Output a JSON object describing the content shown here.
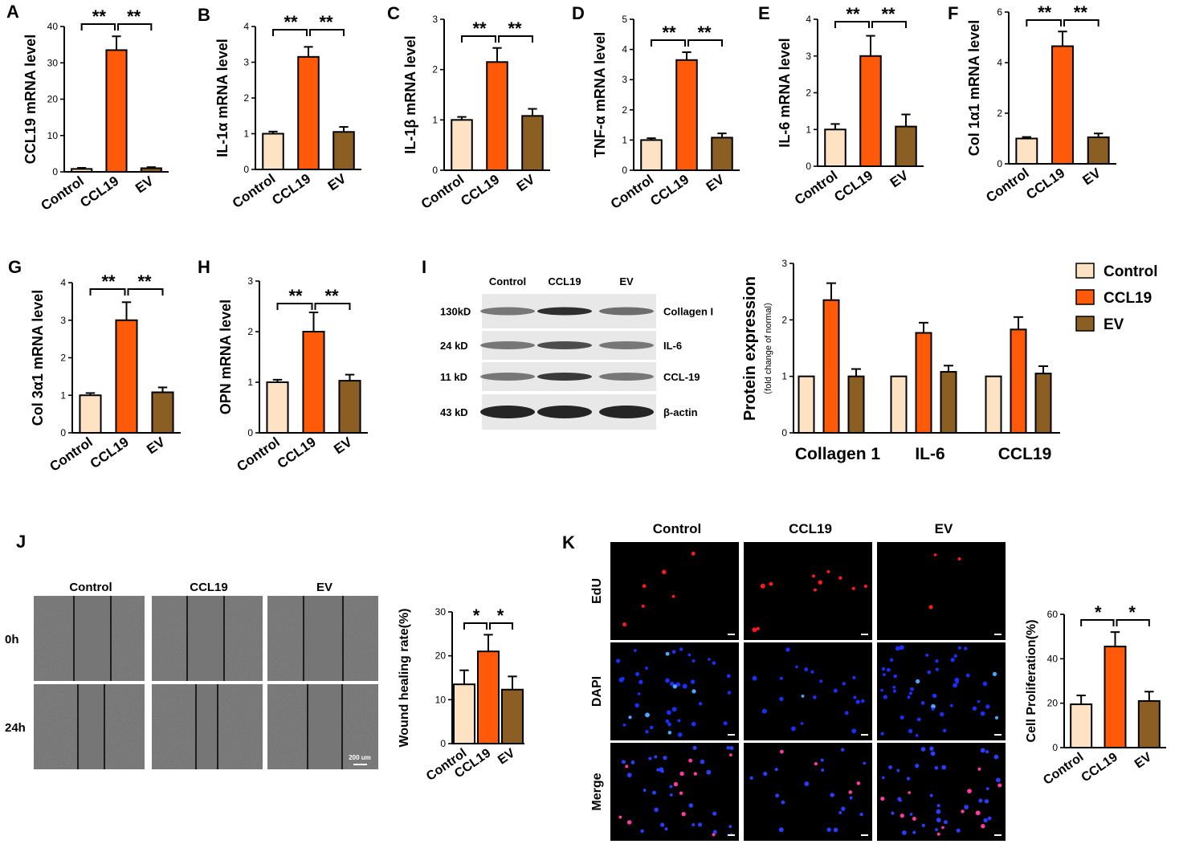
{
  "colors": {
    "control": "#fde3c4",
    "ccl19": "#ff5a0a",
    "ev": "#8b5e24",
    "axis": "#000000"
  },
  "panels": [
    {
      "letter": "A",
      "ylabel": "CCL19 mRNA level",
      "ylim": [
        0,
        40
      ],
      "ticks": [
        "0",
        "10",
        "20",
        "30",
        "40"
      ],
      "tickvals": [
        0,
        10,
        20,
        30,
        40
      ],
      "categories": [
        "Control",
        "CCL19",
        "EV"
      ],
      "values": [
        0.8,
        33.5,
        1.0
      ],
      "errors": [
        0.3,
        3.8,
        0.3
      ],
      "sig": [
        "**",
        "**"
      ]
    },
    {
      "letter": "B",
      "ylabel": "IL-1α mRNA level",
      "ylim": [
        0,
        4
      ],
      "ticks": [
        "0",
        "1",
        "2",
        "3",
        "4"
      ],
      "tickvals": [
        0,
        1,
        2,
        3,
        4
      ],
      "categories": [
        "Control",
        "CCL19",
        "EV"
      ],
      "values": [
        1.0,
        3.15,
        1.05
      ],
      "errors": [
        0.06,
        0.28,
        0.14
      ],
      "sig": [
        "**",
        "**"
      ]
    },
    {
      "letter": "C",
      "ylabel": "IL-1β mRNA level",
      "ylim": [
        0,
        3
      ],
      "ticks": [
        "0",
        "1",
        "2",
        "3"
      ],
      "tickvals": [
        0,
        1,
        2,
        3
      ],
      "categories": [
        "Control",
        "CCL19",
        "EV"
      ],
      "values": [
        1.0,
        2.15,
        1.08
      ],
      "errors": [
        0.06,
        0.28,
        0.14
      ],
      "sig": [
        "**",
        "**"
      ]
    },
    {
      "letter": "D",
      "ylabel": "TNF-α mRNA level",
      "ylim": [
        0,
        5
      ],
      "ticks": [
        "0",
        "1",
        "2",
        "3",
        "4",
        "5"
      ],
      "tickvals": [
        0,
        1,
        2,
        3,
        4,
        5
      ],
      "categories": [
        "Control",
        "CCL19",
        "EV"
      ],
      "values": [
        1.0,
        3.65,
        1.08
      ],
      "errors": [
        0.06,
        0.26,
        0.14
      ],
      "sig": [
        "**",
        "**"
      ]
    },
    {
      "letter": "E",
      "ylabel": "IL-6 mRNA level",
      "ylim": [
        0,
        4
      ],
      "ticks": [
        "0",
        "1",
        "2",
        "3",
        "4"
      ],
      "tickvals": [
        0,
        1,
        2,
        3,
        4
      ],
      "categories": [
        "Control",
        "CCL19",
        "EV"
      ],
      "values": [
        1.0,
        3.0,
        1.08
      ],
      "errors": [
        0.15,
        0.55,
        0.33
      ],
      "sig": [
        "**",
        "**"
      ]
    },
    {
      "letter": "F",
      "ylabel": "Col 1α1 mRNA level",
      "ylim": [
        0,
        6
      ],
      "ticks": [
        "0",
        "2",
        "4",
        "6"
      ],
      "tickvals": [
        0,
        2,
        4,
        6
      ],
      "categories": [
        "Control",
        "CCL19",
        "EV"
      ],
      "values": [
        1.0,
        4.65,
        1.05
      ],
      "errors": [
        0.06,
        0.58,
        0.15
      ],
      "sig": [
        "**",
        "**"
      ]
    },
    {
      "letter": "G",
      "ylabel": "Col 3α1 mRNA level",
      "ylim": [
        0,
        4
      ],
      "ticks": [
        "0",
        "1",
        "2",
        "3",
        "4"
      ],
      "tickvals": [
        0,
        1,
        2,
        3,
        4
      ],
      "categories": [
        "Control",
        "CCL19",
        "EV"
      ],
      "values": [
        1.0,
        3.0,
        1.08
      ],
      "errors": [
        0.06,
        0.48,
        0.13
      ],
      "sig": [
        "**",
        "**"
      ]
    },
    {
      "letter": "H",
      "ylabel": "OPN mRNA level",
      "ylim": [
        0,
        3
      ],
      "ticks": [
        "0",
        "1",
        "2",
        "3"
      ],
      "tickvals": [
        0,
        1,
        2,
        3
      ],
      "categories": [
        "Control",
        "CCL19",
        "EV"
      ],
      "values": [
        1.0,
        2.0,
        1.03
      ],
      "errors": [
        0.05,
        0.38,
        0.12
      ],
      "sig": [
        "**",
        "**"
      ]
    }
  ],
  "panel_i": {
    "letter": "I",
    "lane_labels": [
      "Control",
      "CCL19",
      "EV"
    ],
    "rows": [
      {
        "mw": "130kD",
        "name": "Collagen I"
      },
      {
        "mw": "24  kD",
        "name": "IL-6"
      },
      {
        "mw": "11  kD",
        "name": "CCL-19"
      },
      {
        "mw": "43  kD",
        "name": "β-actin"
      }
    ]
  },
  "chart_i": {
    "type": "bar",
    "ylabel": "Protein expression",
    "ylabel_sub": "（fold change of normal）",
    "ylim": [
      0,
      3
    ],
    "ticks": [
      "0",
      "1",
      "2",
      "3"
    ],
    "tickvals": [
      0,
      1,
      2,
      3
    ],
    "categories": [
      "Collagen 1",
      "IL-6",
      "CCL19"
    ],
    "series": [
      {
        "name": "Control",
        "values": [
          1.0,
          1.0,
          1.0
        ],
        "errors": [
          0,
          0,
          0
        ]
      },
      {
        "name": "CCL19",
        "values": [
          2.35,
          1.77,
          1.83
        ],
        "errors": [
          0.3,
          0.18,
          0.22
        ]
      },
      {
        "name": "EV",
        "values": [
          1.0,
          1.08,
          1.05
        ],
        "errors": [
          0.13,
          0.11,
          0.13
        ]
      }
    ]
  },
  "legend": [
    "Control",
    "CCL19",
    "EV"
  ],
  "panel_j": {
    "letter": "J",
    "col_labels": [
      "Control",
      "CCL19",
      "EV"
    ],
    "row_labels": [
      "0h",
      "24h"
    ],
    "scale_bar": "200 um",
    "chart": {
      "ylabel": "Wound healing rate(%)",
      "ylim": [
        0,
        30
      ],
      "ticks": [
        "0",
        "10",
        "20",
        "30"
      ],
      "tickvals": [
        0,
        10,
        20,
        30
      ],
      "categories": [
        "Control",
        "CCL19",
        "EV"
      ],
      "values": [
        13.5,
        21.0,
        12.3
      ],
      "errors": [
        3.2,
        3.8,
        3.0
      ],
      "sig": [
        "*",
        "*"
      ]
    }
  },
  "panel_k": {
    "letter": "K",
    "col_labels": [
      "Control",
      "CCL19",
      "EV"
    ],
    "row_labels": [
      "EdU",
      "DAPI",
      "Merge"
    ],
    "chart": {
      "ylabel": "Cell Proliferation(%)",
      "ylim": [
        0,
        60
      ],
      "ticks": [
        "0",
        "20",
        "40",
        "60"
      ],
      "tickvals": [
        0,
        20,
        40,
        60
      ],
      "categories": [
        "Control",
        "CCL19",
        "EV"
      ],
      "values": [
        19.5,
        45.5,
        21.0
      ],
      "errors": [
        4.0,
        6.5,
        4.2
      ],
      "sig": [
        "*",
        "*"
      ]
    }
  },
  "chart_data": [
    {
      "type": "bar",
      "ylabel": "CCL19 mRNA level",
      "categories": [
        "Control",
        "CCL19",
        "EV"
      ],
      "values": [
        0.8,
        33.5,
        1.0
      ],
      "ylim": [
        0,
        40
      ]
    },
    {
      "type": "bar",
      "ylabel": "IL-1α mRNA level",
      "categories": [
        "Control",
        "CCL19",
        "EV"
      ],
      "values": [
        1.0,
        3.15,
        1.05
      ],
      "ylim": [
        0,
        4
      ]
    },
    {
      "type": "bar",
      "ylabel": "IL-1β mRNA level",
      "categories": [
        "Control",
        "CCL19",
        "EV"
      ],
      "values": [
        1.0,
        2.15,
        1.08
      ],
      "ylim": [
        0,
        3
      ]
    },
    {
      "type": "bar",
      "ylabel": "TNF-α mRNA level",
      "categories": [
        "Control",
        "CCL19",
        "EV"
      ],
      "values": [
        1.0,
        3.65,
        1.08
      ],
      "ylim": [
        0,
        5
      ]
    },
    {
      "type": "bar",
      "ylabel": "IL-6 mRNA level",
      "categories": [
        "Control",
        "CCL19",
        "EV"
      ],
      "values": [
        1.0,
        3.0,
        1.08
      ],
      "ylim": [
        0,
        4
      ]
    },
    {
      "type": "bar",
      "ylabel": "Col 1α1 mRNA level",
      "categories": [
        "Control",
        "CCL19",
        "EV"
      ],
      "values": [
        1.0,
        4.65,
        1.05
      ],
      "ylim": [
        0,
        6
      ]
    },
    {
      "type": "bar",
      "ylabel": "Col 3α1 mRNA level",
      "categories": [
        "Control",
        "CCL19",
        "EV"
      ],
      "values": [
        1.0,
        3.0,
        1.08
      ],
      "ylim": [
        0,
        4
      ]
    },
    {
      "type": "bar",
      "ylabel": "OPN mRNA level",
      "categories": [
        "Control",
        "CCL19",
        "EV"
      ],
      "values": [
        1.0,
        2.0,
        1.03
      ],
      "ylim": [
        0,
        3
      ]
    },
    {
      "type": "bar",
      "ylabel": "Protein expression",
      "categories": [
        "Collagen 1",
        "IL-6",
        "CCL19"
      ],
      "series": [
        {
          "name": "Control",
          "values": [
            1.0,
            1.0,
            1.0
          ]
        },
        {
          "name": "CCL19",
          "values": [
            2.35,
            1.77,
            1.83
          ]
        },
        {
          "name": "EV",
          "values": [
            1.0,
            1.08,
            1.05
          ]
        }
      ],
      "ylim": [
        0,
        3
      ]
    },
    {
      "type": "bar",
      "ylabel": "Wound healing rate(%)",
      "categories": [
        "Control",
        "CCL19",
        "EV"
      ],
      "values": [
        13.5,
        21.0,
        12.3
      ],
      "ylim": [
        0,
        30
      ]
    },
    {
      "type": "bar",
      "ylabel": "Cell Proliferation(%)",
      "categories": [
        "Control",
        "CCL19",
        "EV"
      ],
      "values": [
        19.5,
        45.5,
        21.0
      ],
      "ylim": [
        0,
        60
      ]
    }
  ]
}
